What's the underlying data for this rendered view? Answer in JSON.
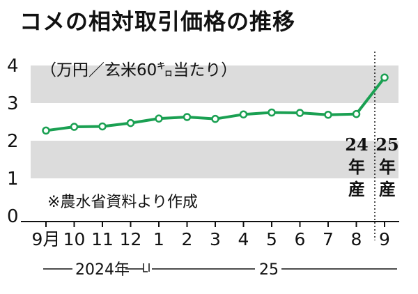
{
  "title": "コメの相対取引価格の推移",
  "chart_data": {
    "type": "line",
    "title": "コメの相対取引価格の推移",
    "unit_label": "（万円／玄米60㌔当たり）",
    "categories": [
      "9月",
      "10",
      "11",
      "12",
      "1",
      "2",
      "3",
      "4",
      "5",
      "6",
      "7",
      "8",
      "9"
    ],
    "values": [
      2.27,
      2.37,
      2.38,
      2.47,
      2.59,
      2.63,
      2.58,
      2.7,
      2.75,
      2.74,
      2.69,
      2.71,
      3.68
    ],
    "yticks": [
      "0",
      "1",
      "2",
      "3",
      "4"
    ],
    "ylim": [
      0,
      4
    ],
    "year_labels": [
      "2024年",
      "25"
    ],
    "crop_year_labels": [
      {
        "lines": [
          "24",
          "年",
          "産"
        ]
      },
      {
        "lines": [
          "25",
          "年",
          "産"
        ]
      }
    ],
    "source_note": "※農水省資料より作成",
    "colors": {
      "line": "#1aa052",
      "band": "#dcdcdc",
      "axis": "#111111"
    }
  }
}
